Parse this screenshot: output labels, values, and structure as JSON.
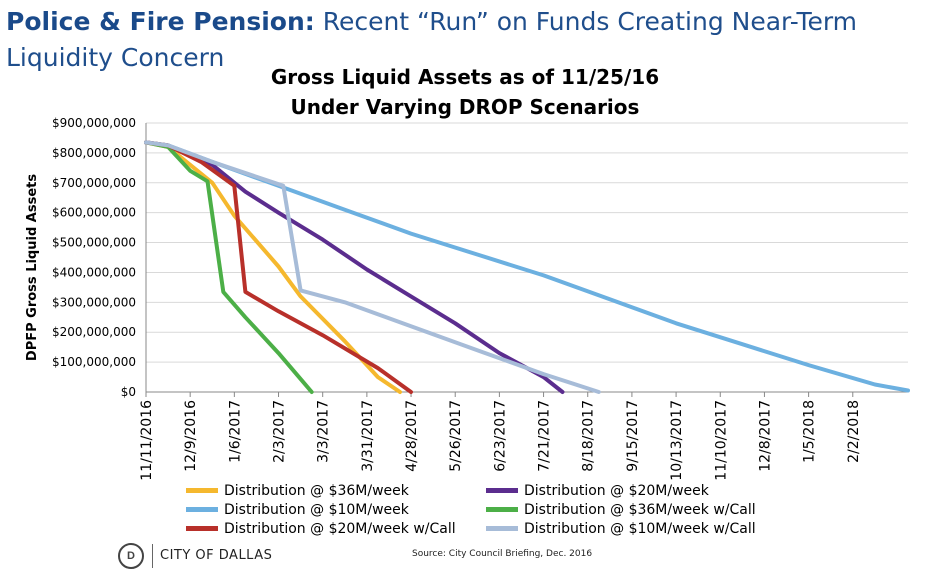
{
  "slide": {
    "title_bold": "Police & Fire Pension:",
    "title_rest": " Recent “Run” on Funds Creating Near-Term Liquidity Concern"
  },
  "footer": {
    "logo_text": "D",
    "org": "CITY OF DALLAS",
    "source": "Source: City Council Briefing, Dec. 2016"
  },
  "chart_data": {
    "type": "line",
    "title": "Gross Liquid Assets as of 11/25/16",
    "subtitle": "Under Varying DROP Scenarios",
    "ylabel": "DPFP Gross Liquid Assets",
    "xlabel": "",
    "ylim": [
      0,
      900000000
    ],
    "xlim": [
      "2016-11-11",
      "2018-03-09"
    ],
    "grid": true,
    "legend_position": "bottom",
    "x_ticks": [
      "11/11/2016",
      "12/9/2016",
      "1/6/2017",
      "2/3/2017",
      "3/3/2017",
      "3/31/2017",
      "4/28/2017",
      "5/26/2017",
      "6/23/2017",
      "7/21/2017",
      "8/18/2017",
      "9/15/2017",
      "10/13/2017",
      "11/10/2017",
      "12/8/2017",
      "1/5/2018",
      "2/2/2018"
    ],
    "y_ticks": [
      "$0",
      "$100,000,000",
      "$200,000,000",
      "$300,000,000",
      "$400,000,000",
      "$500,000,000",
      "$600,000,000",
      "$700,000,000",
      "$800,000,000",
      "$900,000,000"
    ],
    "series": [
      {
        "name": "Distribution @  $36M/week",
        "color": "#f5b82e",
        "points": [
          [
            "2016-11-11",
            835000000
          ],
          [
            "2016-11-25",
            820000000
          ],
          [
            "2016-12-23",
            700000000
          ],
          [
            "2017-01-06",
            590000000
          ],
          [
            "2017-02-03",
            420000000
          ],
          [
            "2017-02-17",
            320000000
          ],
          [
            "2017-03-17",
            170000000
          ],
          [
            "2017-04-07",
            50000000
          ],
          [
            "2017-04-21",
            0
          ]
        ]
      },
      {
        "name": "Distribution @  $20M/week",
        "color": "#5b2d8e",
        "points": [
          [
            "2016-11-11",
            835000000
          ],
          [
            "2016-11-25",
            825000000
          ],
          [
            "2016-12-23",
            760000000
          ],
          [
            "2017-01-13",
            670000000
          ],
          [
            "2017-02-03",
            600000000
          ],
          [
            "2017-03-03",
            510000000
          ],
          [
            "2017-03-31",
            410000000
          ],
          [
            "2017-04-28",
            320000000
          ],
          [
            "2017-05-26",
            230000000
          ],
          [
            "2017-06-23",
            130000000
          ],
          [
            "2017-07-21",
            50000000
          ],
          [
            "2017-08-02",
            0
          ]
        ]
      },
      {
        "name": "Distribution @  $10M/week",
        "color": "#6cb0e0",
        "points": [
          [
            "2016-11-11",
            835000000
          ],
          [
            "2016-11-25",
            825000000
          ],
          [
            "2016-12-23",
            770000000
          ],
          [
            "2017-02-03",
            690000000
          ],
          [
            "2017-03-17",
            610000000
          ],
          [
            "2017-04-28",
            530000000
          ],
          [
            "2017-06-09",
            460000000
          ],
          [
            "2017-07-21",
            390000000
          ],
          [
            "2017-09-01",
            310000000
          ],
          [
            "2017-10-13",
            230000000
          ],
          [
            "2017-11-24",
            160000000
          ],
          [
            "2018-01-05",
            90000000
          ],
          [
            "2018-02-16",
            25000000
          ],
          [
            "2018-03-09",
            5000000
          ]
        ]
      },
      {
        "name": "Distribution @  $36M/week w/Call",
        "color": "#4caf47",
        "points": [
          [
            "2016-11-11",
            835000000
          ],
          [
            "2016-11-25",
            820000000
          ],
          [
            "2016-12-09",
            740000000
          ],
          [
            "2016-12-20",
            705000000
          ],
          [
            "2016-12-30",
            335000000
          ],
          [
            "2017-01-13",
            250000000
          ],
          [
            "2017-02-03",
            130000000
          ],
          [
            "2017-02-24",
            0
          ]
        ]
      },
      {
        "name": "Distribution @  $20M/week w/Call",
        "color": "#b8302a",
        "points": [
          [
            "2016-11-11",
            835000000
          ],
          [
            "2016-11-25",
            825000000
          ],
          [
            "2016-12-16",
            770000000
          ],
          [
            "2017-01-06",
            690000000
          ],
          [
            "2017-01-13",
            335000000
          ],
          [
            "2017-02-03",
            270000000
          ],
          [
            "2017-03-03",
            190000000
          ],
          [
            "2017-04-07",
            80000000
          ],
          [
            "2017-04-28",
            0
          ]
        ]
      },
      {
        "name": "Distribution @  $10M/week w/Call",
        "color": "#a7bcd8",
        "points": [
          [
            "2016-11-11",
            835000000
          ],
          [
            "2016-11-25",
            825000000
          ],
          [
            "2016-12-23",
            770000000
          ],
          [
            "2017-02-06",
            690000000
          ],
          [
            "2017-02-17",
            340000000
          ],
          [
            "2017-03-17",
            300000000
          ],
          [
            "2017-04-28",
            220000000
          ],
          [
            "2017-06-09",
            140000000
          ],
          [
            "2017-07-21",
            60000000
          ],
          [
            "2017-08-25",
            0
          ]
        ]
      }
    ]
  }
}
